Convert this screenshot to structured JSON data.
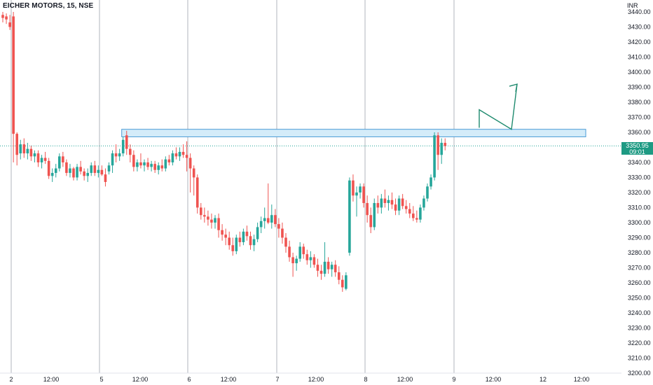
{
  "symbol_title": "EICHER MOTORS, 15, NSE",
  "currency": "INR",
  "last_price": {
    "value": "3350.95",
    "countdown": "09:01"
  },
  "colors": {
    "up": "#26a69a",
    "up_dark": "#1e8a6e",
    "down": "#ef5350",
    "grid": "#b2b5be",
    "zone_fill": "#d4ecf9",
    "zone_stroke": "#4a9bd6",
    "arrow": "#1e8a6e",
    "price_line": "#26a69a",
    "text": "#131722"
  },
  "chart_data": {
    "type": "candlestick",
    "title": "EICHER MOTORS, 15, NSE",
    "y_axis": {
      "label": "INR",
      "range": [
        3200,
        3440
      ],
      "ticks": [
        3440,
        3430,
        3420,
        3410,
        3400,
        3390,
        3380,
        3370,
        3360,
        3350,
        3340,
        3330,
        3320,
        3310,
        3300,
        3290,
        3280,
        3270,
        3260,
        3250,
        3240,
        3230,
        3220,
        3210,
        3200
      ]
    },
    "x_axis": {
      "ticks": [
        "2",
        "12:00",
        "5",
        "12:00",
        "6",
        "12:00",
        "7",
        "12:00",
        "8",
        "12:00",
        "9",
        "12:00",
        "12",
        "12:00"
      ],
      "day_separators": [
        "2",
        "5",
        "6",
        "7",
        "8",
        "9"
      ]
    },
    "session_bars": 25,
    "candles": [
      [
        3438,
        3440,
        3433,
        3436
      ],
      [
        3437,
        3439,
        3432,
        3435
      ],
      [
        3433,
        3438,
        3428,
        3430
      ],
      [
        3437,
        3440,
        3340,
        3359
      ],
      [
        3359,
        3360,
        3338,
        3345
      ],
      [
        3346,
        3355,
        3342,
        3352
      ],
      [
        3352,
        3356,
        3343,
        3346
      ],
      [
        3346,
        3353,
        3342,
        3349
      ],
      [
        3349,
        3351,
        3341,
        3344
      ],
      [
        3344,
        3348,
        3340,
        3346
      ],
      [
        3346,
        3348,
        3337,
        3340
      ],
      [
        3340,
        3345,
        3336,
        3343
      ],
      [
        3343,
        3347,
        3339,
        3341
      ],
      [
        3341,
        3343,
        3329,
        3331
      ],
      [
        3331,
        3336,
        3327,
        3333
      ],
      [
        3333,
        3339,
        3330,
        3336
      ],
      [
        3336,
        3346,
        3334,
        3344
      ],
      [
        3344,
        3347,
        3337,
        3340
      ],
      [
        3340,
        3342,
        3331,
        3333
      ],
      [
        3333,
        3339,
        3330,
        3336
      ],
      [
        3336,
        3337,
        3328,
        3330
      ],
      [
        3330,
        3339,
        3328,
        3337
      ],
      [
        3337,
        3341,
        3332,
        3334
      ],
      [
        3334,
        3336,
        3328,
        3331
      ],
      [
        3331,
        3336,
        3327,
        3333
      ],
      [
        3333,
        3340,
        3331,
        3338
      ],
      [
        3338,
        3341,
        3331,
        3333
      ],
      [
        3333,
        3338,
        3330,
        3335
      ],
      [
        3335,
        3338,
        3331,
        3332
      ],
      [
        3332,
        3336,
        3324,
        3327
      ],
      [
        3334,
        3340,
        3332,
        3338
      ],
      [
        3338,
        3348,
        3333,
        3346
      ],
      [
        3346,
        3352,
        3340,
        3344
      ],
      [
        3344,
        3349,
        3341,
        3346
      ],
      [
        3346,
        3357,
        3344,
        3355
      ],
      [
        3358,
        3361,
        3345,
        3349
      ],
      [
        3349,
        3352,
        3340,
        3345
      ],
      [
        3345,
        3348,
        3334,
        3337
      ],
      [
        3337,
        3342,
        3334,
        3340
      ],
      [
        3340,
        3346,
        3336,
        3338
      ],
      [
        3338,
        3342,
        3334,
        3340
      ],
      [
        3340,
        3343,
        3335,
        3337
      ],
      [
        3337,
        3341,
        3334,
        3339
      ],
      [
        3339,
        3341,
        3333,
        3335
      ],
      [
        3335,
        3340,
        3332,
        3338
      ],
      [
        3338,
        3342,
        3334,
        3336
      ],
      [
        3336,
        3344,
        3334,
        3342
      ],
      [
        3342,
        3345,
        3338,
        3340
      ],
      [
        3340,
        3348,
        3338,
        3346
      ],
      [
        3346,
        3350,
        3342,
        3344
      ],
      [
        3344,
        3350,
        3341,
        3347
      ],
      [
        3347,
        3352,
        3343,
        3345
      ],
      [
        3345,
        3354,
        3334,
        3343
      ],
      [
        3343,
        3346,
        3320,
        3336
      ],
      [
        3336,
        3338,
        3318,
        3330
      ],
      [
        3330,
        3332,
        3306,
        3310
      ],
      [
        3310,
        3313,
        3302,
        3305
      ],
      [
        3305,
        3310,
        3300,
        3304
      ],
      [
        3304,
        3308,
        3298,
        3302
      ],
      [
        3302,
        3306,
        3296,
        3300
      ],
      [
        3300,
        3305,
        3296,
        3303
      ],
      [
        3303,
        3306,
        3290,
        3295
      ],
      [
        3295,
        3299,
        3288,
        3292
      ],
      [
        3292,
        3296,
        3285,
        3290
      ],
      [
        3290,
        3294,
        3282,
        3285
      ],
      [
        3285,
        3290,
        3278,
        3281
      ],
      [
        3281,
        3292,
        3279,
        3290
      ],
      [
        3290,
        3294,
        3284,
        3287
      ],
      [
        3287,
        3296,
        3285,
        3294
      ],
      [
        3294,
        3298,
        3288,
        3291
      ],
      [
        3291,
        3294,
        3282,
        3285
      ],
      [
        3285,
        3292,
        3281,
        3289
      ],
      [
        3289,
        3300,
        3287,
        3297
      ],
      [
        3297,
        3304,
        3293,
        3301
      ],
      [
        3301,
        3310,
        3296,
        3303
      ],
      [
        3303,
        3326,
        3299,
        3300
      ],
      [
        3300,
        3312,
        3296,
        3305
      ],
      [
        3305,
        3309,
        3297,
        3299
      ],
      [
        3299,
        3303,
        3290,
        3296
      ],
      [
        3296,
        3300,
        3286,
        3290
      ],
      [
        3290,
        3293,
        3280,
        3284
      ],
      [
        3284,
        3288,
        3274,
        3277
      ],
      [
        3277,
        3280,
        3264,
        3273
      ],
      [
        3273,
        3278,
        3268,
        3276
      ],
      [
        3276,
        3287,
        3274,
        3284
      ],
      [
        3284,
        3286,
        3276,
        3279
      ],
      [
        3279,
        3282,
        3272,
        3275
      ],
      [
        3275,
        3281,
        3270,
        3277
      ],
      [
        3277,
        3279,
        3270,
        3272
      ],
      [
        3272,
        3276,
        3264,
        3268
      ],
      [
        3268,
        3272,
        3262,
        3266
      ],
      [
        3266,
        3287,
        3264,
        3274
      ],
      [
        3274,
        3277,
        3266,
        3269
      ],
      [
        3269,
        3274,
        3264,
        3272
      ],
      [
        3272,
        3275,
        3264,
        3267
      ],
      [
        3267,
        3271,
        3259,
        3262
      ],
      [
        3262,
        3265,
        3254,
        3257
      ],
      [
        3256,
        3267,
        3255,
        3265
      ],
      [
        3280,
        3330,
        3278,
        3328
      ],
      [
        3328,
        3332,
        3314,
        3318
      ],
      [
        3318,
        3324,
        3304,
        3320
      ],
      [
        3320,
        3326,
        3316,
        3324
      ],
      [
        3324,
        3326,
        3310,
        3313
      ],
      [
        3313,
        3318,
        3300,
        3305
      ],
      [
        3305,
        3310,
        3293,
        3297
      ],
      [
        3297,
        3316,
        3295,
        3313
      ],
      [
        3313,
        3318,
        3306,
        3310
      ],
      [
        3310,
        3319,
        3306,
        3316
      ],
      [
        3316,
        3322,
        3310,
        3313
      ],
      [
        3313,
        3318,
        3308,
        3315
      ],
      [
        3315,
        3320,
        3309,
        3312
      ],
      [
        3312,
        3316,
        3305,
        3308
      ],
      [
        3308,
        3318,
        3305,
        3316
      ],
      [
        3316,
        3319,
        3309,
        3311
      ],
      [
        3311,
        3315,
        3306,
        3309
      ],
      [
        3309,
        3313,
        3303,
        3306
      ],
      [
        3306,
        3311,
        3301,
        3303
      ],
      [
        3303,
        3308,
        3300,
        3302
      ],
      [
        3302,
        3312,
        3300,
        3310
      ],
      [
        3310,
        3318,
        3308,
        3316
      ],
      [
        3316,
        3326,
        3314,
        3324
      ],
      [
        3324,
        3332,
        3322,
        3330
      ],
      [
        3330,
        3360,
        3328,
        3358
      ],
      [
        3358,
        3360,
        3335,
        3345
      ],
      [
        3345,
        3356,
        3339,
        3353
      ],
      [
        3353,
        3356,
        3348,
        3351
      ]
    ],
    "annotations": {
      "resistance_zone": {
        "from_bar": 34,
        "to_price_top": 3362,
        "to_price_bottom": 3357
      },
      "price_line": 3350.95,
      "projection_path": [
        [
          3375,
          0
        ],
        [
          3361,
          1
        ],
        [
          3392,
          2
        ]
      ]
    }
  }
}
